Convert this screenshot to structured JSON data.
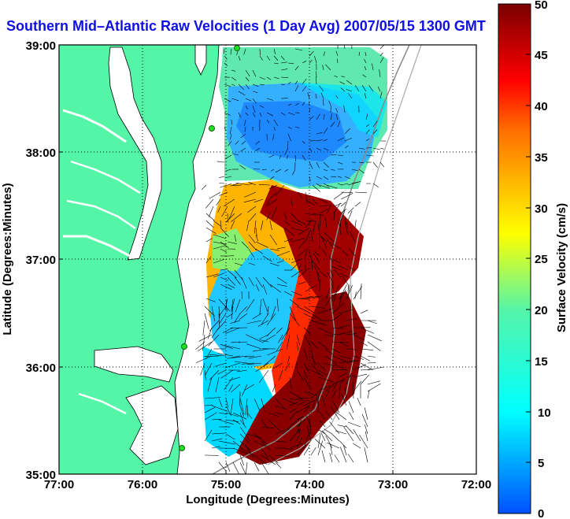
{
  "title": "Southern Mid–Atlantic Raw Velocities (1 Day Avg) 2007/05/15 1300 GMT",
  "axes": {
    "xlabel": "Longitude (Degrees:Minutes)",
    "ylabel": "Latitude (Degrees:Minutes)",
    "xticks": [
      "77:00",
      "76:00",
      "75:00",
      "74:00",
      "73:00",
      "72:00"
    ],
    "yticks": [
      "39:00",
      "38:00",
      "37:00",
      "36:00",
      "35:00"
    ]
  },
  "colorbar": {
    "label": "Surface Velocity (cm/s)",
    "ticks": [
      "50",
      "45",
      "40",
      "35",
      "30",
      "25",
      "20",
      "15",
      "10",
      "5",
      "0"
    ],
    "min": 0,
    "max": 50
  },
  "map": {
    "lon_range": [
      -77,
      -72
    ],
    "lat_range": [
      35,
      39
    ],
    "land_color": "#55f5a8",
    "water_color": "#ffffff",
    "vector_color": "#000000",
    "station_color": "#22dd22"
  }
}
